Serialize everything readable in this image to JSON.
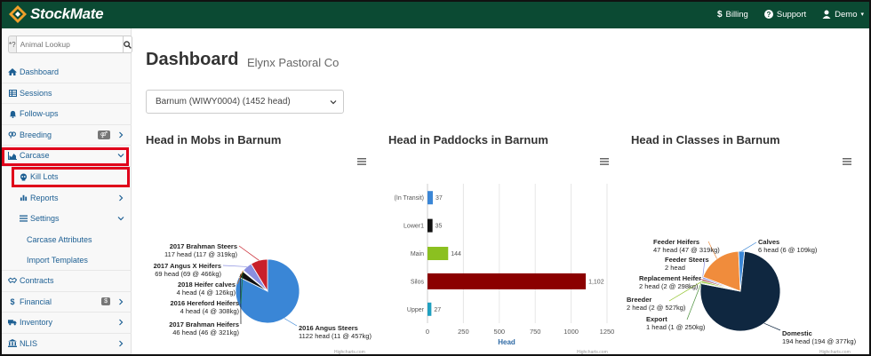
{
  "navbar": {
    "brand": "StockMate",
    "links": [
      {
        "label": "Billing",
        "icon": "dollar-icon"
      },
      {
        "label": "Support",
        "icon": "help-icon"
      },
      {
        "label": "Demo",
        "icon": "user-icon"
      }
    ]
  },
  "sidebar": {
    "search_prefix": "*?",
    "search_placeholder": "Animal Lookup",
    "items": [
      {
        "label": "Dashboard",
        "icon": "home-icon"
      },
      {
        "label": "Sessions",
        "icon": "table-icon"
      },
      {
        "label": "Follow-ups",
        "icon": "bell-icon"
      },
      {
        "label": "Breeding",
        "icon": "venus-mars-icon"
      },
      {
        "label": "Carcase",
        "icon": "area-chart-icon"
      },
      {
        "label": "Kill Lots",
        "icon": "skull-icon"
      },
      {
        "label": "Reports",
        "icon": "bar-chart-icon"
      },
      {
        "label": "Settings",
        "icon": "list-icon"
      },
      {
        "label": "Carcase Attributes"
      },
      {
        "label": "Import Templates"
      },
      {
        "label": "Contracts",
        "icon": "handshake-icon"
      },
      {
        "label": "Financial",
        "icon": "dollar-icon",
        "badge": "$"
      },
      {
        "label": "Inventory",
        "icon": "truck-icon"
      },
      {
        "label": "NLIS",
        "icon": "bank-icon"
      }
    ]
  },
  "main": {
    "title": "Dashboard",
    "subtitle": "Elynx Pastoral Co",
    "property_select": "Barnum (WIWY0004) (1452 head)",
    "credit": "Highcharts.com"
  },
  "chart_data": [
    {
      "type": "pie",
      "title": "Head in Mobs in Barnum",
      "slices": [
        {
          "name": "2016 Angus Steers",
          "value": 1122,
          "label": "1122 head (11 @ 457kg)",
          "color": "#3a86d6"
        },
        {
          "name": "2017 Brahman Heifers",
          "value": 46,
          "label": "46 head (46 @ 321kg)",
          "color": "#111111"
        },
        {
          "name": "2016 Hereford Heifers",
          "value": 4,
          "label": "4 head (4 @ 308kg)",
          "color": "#1b7a2a"
        },
        {
          "name": "2018 Heifer calves",
          "value": 4,
          "label": "4 head (4 @ 126kg)",
          "color": "#e07020"
        },
        {
          "name": "2017 Angus X Heifers",
          "value": 69,
          "label": "69 head (69 @ 466kg)",
          "color": "#8a8fe0"
        },
        {
          "name": "2017 Brahman Steers",
          "value": 117,
          "label": "117 head (117 @ 319kg)",
          "color": "#c8202a"
        }
      ]
    },
    {
      "type": "bar",
      "title": "Head in Paddocks in Barnum",
      "categories": [
        "(In Transit)",
        "Lower1",
        "Main",
        "Silos",
        "Upper"
      ],
      "values": [
        37,
        35,
        144,
        1102,
        27
      ],
      "value_labels": [
        "37",
        "35",
        "144",
        "1,102",
        "27"
      ],
      "colors": [
        "#3a86d6",
        "#111111",
        "#8bc020",
        "#8b0000",
        "#20a0c0"
      ],
      "xlabel": "Head",
      "xlim": [
        0,
        1250
      ],
      "ticks": [
        0,
        250,
        500,
        750,
        1000,
        1250
      ]
    },
    {
      "type": "pie",
      "title": "Head in Classes in Barnum",
      "slices": [
        {
          "name": "Domestic",
          "value": 194,
          "label": "194 head (194 @ 377kg)",
          "color": "#0f2740"
        },
        {
          "name": "Export",
          "value": 1,
          "label": "1 head (1 @ 250kg)",
          "color": "#4a8f3a"
        },
        {
          "name": "Breeder",
          "value": 2,
          "label": "2 head (2 @ 527kg)",
          "color": "#8bc020"
        },
        {
          "name": "Replacement Heifer",
          "value": 2,
          "label": "2 head (2 @ 298kg)",
          "color": "#a04040"
        },
        {
          "name": "Feeder Steers",
          "value": 2,
          "label": "2 head",
          "color": "#8a8fe0"
        },
        {
          "name": "Feeder Heifers",
          "value": 47,
          "label": "47 head (47 @ 319kg)",
          "color": "#f08c3c"
        },
        {
          "name": "Calves",
          "value": 6,
          "label": "6 head (6 @ 109kg)",
          "color": "#3a86d6"
        }
      ]
    }
  ]
}
